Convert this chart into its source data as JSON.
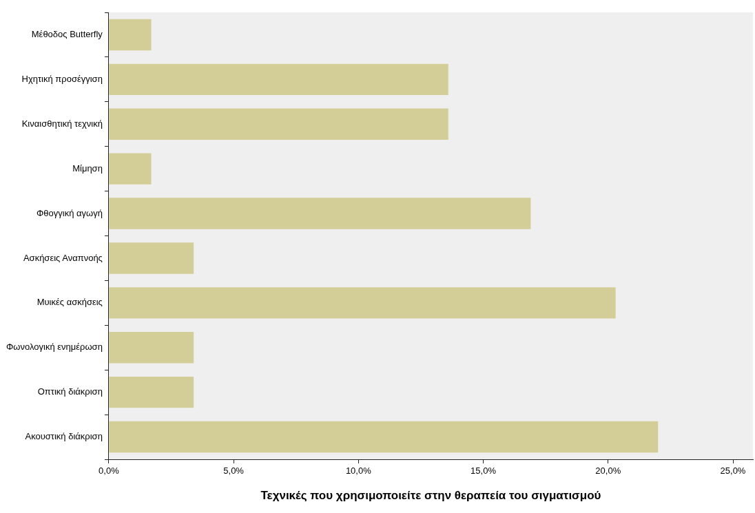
{
  "chart_data": {
    "type": "bar",
    "orientation": "horizontal",
    "xlabel": "Τεχνικές που χρησιμοποιείτε στην θεραπεία του σιγματισμού",
    "categories": [
      "Μέθοδος Butterfly",
      "Ηχητική προσέγγιση",
      "Κιναισθητική τεχνική",
      "Μίμηση",
      "Φθογγική αγωγή",
      "Ασκήσεις Αναπνοής",
      "Μυικές ασκήσεις",
      "Φωνολογική ενημέρωση",
      "Οπτική διάκριση",
      "Ακουστική διάκριση"
    ],
    "values": [
      1.7,
      13.6,
      13.6,
      1.7,
      16.9,
      3.4,
      20.3,
      3.4,
      3.4,
      22.0
    ],
    "color": "#d3cd97",
    "xlim": [
      0,
      25.8
    ],
    "xticks": [
      {
        "value": 0,
        "label": "0,0%"
      },
      {
        "value": 5,
        "label": "5,0%"
      },
      {
        "value": 10,
        "label": "10,0%"
      },
      {
        "value": 15,
        "label": "15,0%"
      },
      {
        "value": 20,
        "label": "20,0%"
      },
      {
        "value": 25,
        "label": "25,0%"
      }
    ],
    "grid": false,
    "legend": false
  }
}
